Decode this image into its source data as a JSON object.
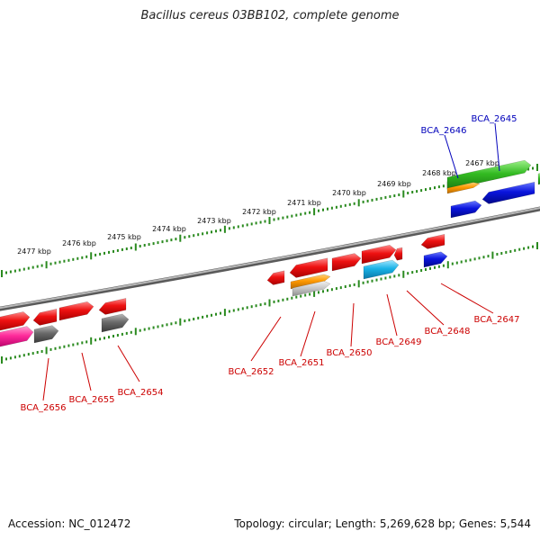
{
  "title": "Bacillus cereus 03BB102, complete genome",
  "footer": {
    "accession": "Accession: NC_012472",
    "summary": "Topology: circular; Length: 5,269,628 bp; Genes: 5,544"
  },
  "colors": {
    "tick": "#2a8a1f",
    "backbone": "#8a8a8a",
    "red": "#ee1111",
    "green": "#33bb22",
    "orange": "#ff9900",
    "blue": "#0a14dd",
    "cyan": "#19b2e6",
    "magenta": "#ff2a9a",
    "gray": "#6a6a6a",
    "lightgray": "#c9c9c9",
    "label_red": "#cc0000",
    "label_blue": "#0000bb"
  },
  "scale_labels": [
    "2477 kbp",
    "2476 kbp",
    "2475 kbp",
    "2474 kbp",
    "2473 kbp",
    "2472 kbp",
    "2471 kbp",
    "2470 kbp",
    "2469 kbp",
    "2468 kbp",
    "2467 kbp"
  ],
  "genes": {
    "BCA_2645": "BCA_2645",
    "BCA_2646": "BCA_2646",
    "BCA_2647": "BCA_2647",
    "BCA_2648": "BCA_2648",
    "BCA_2649": "BCA_2649",
    "BCA_2650": "BCA_2650",
    "BCA_2651": "BCA_2651",
    "BCA_2652": "BCA_2652",
    "BCA_2654": "BCA_2654",
    "BCA_2655": "BCA_2655",
    "BCA_2656": "BCA_2656"
  }
}
